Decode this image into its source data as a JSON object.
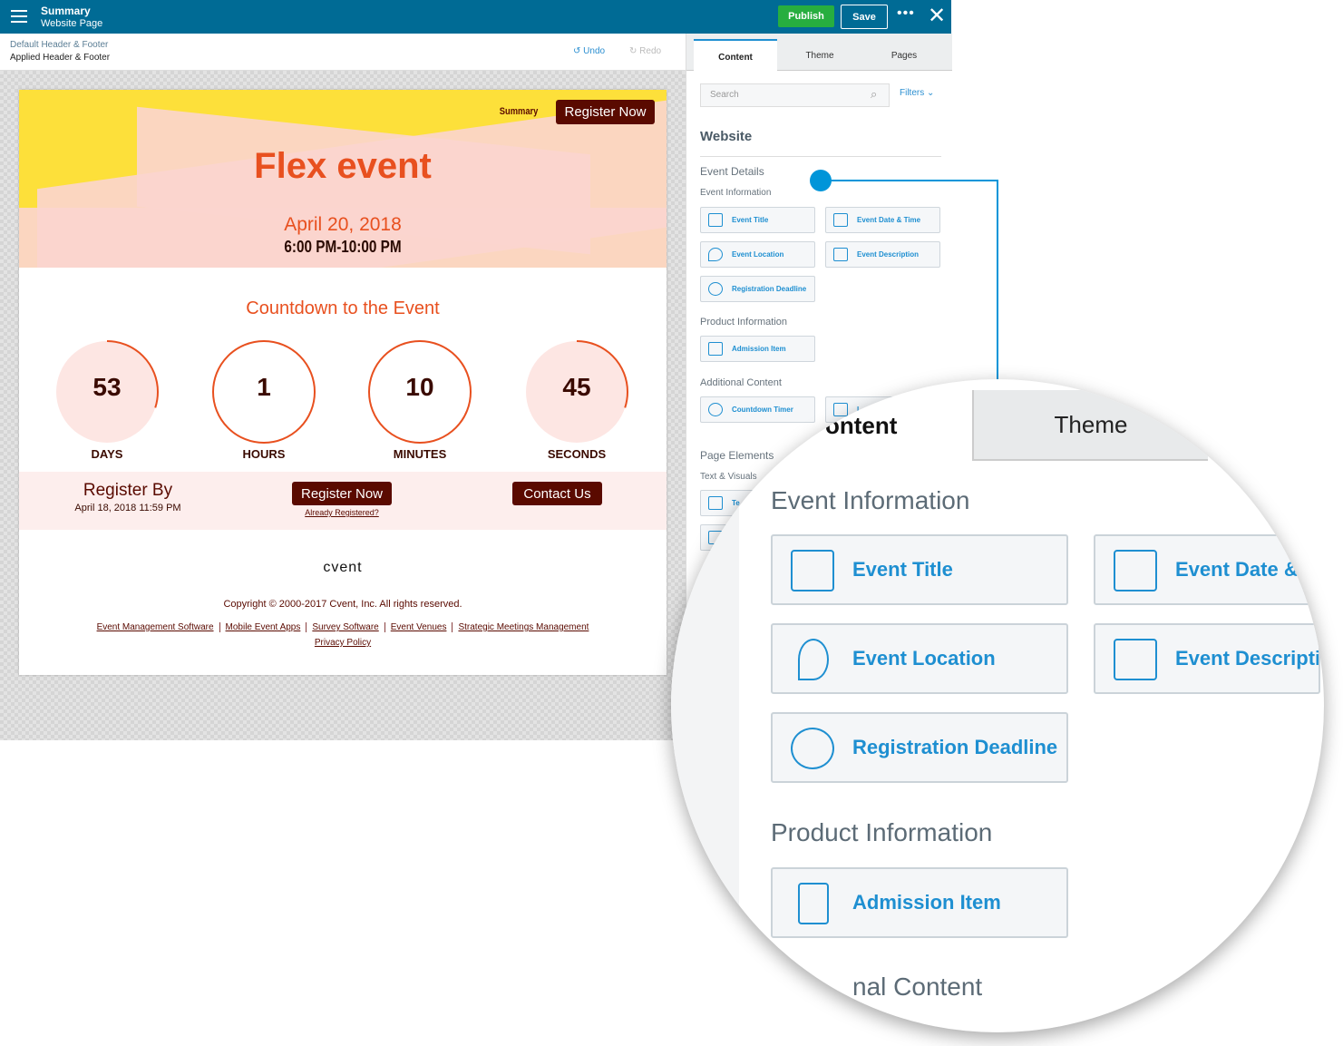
{
  "topbar": {
    "title": "Summary",
    "subtitle": "Website Page",
    "publish": "Publish",
    "save": "Save",
    "more": "•••",
    "close": "✕"
  },
  "subbar": {
    "default": "Default Header & Footer",
    "applied": "Applied Header & Footer",
    "undo": "Undo",
    "redo": "Redo"
  },
  "page": {
    "nav_summary": "Summary",
    "register_top": "Register Now",
    "title": "Flex event",
    "date": "April 20, 2018",
    "time": "6:00 PM-10:00 PM",
    "countdown_title": "Countdown to the Event",
    "countdown": [
      {
        "value": "53",
        "label": "DAYS",
        "progress": 0.3
      },
      {
        "value": "1",
        "label": "HOURS",
        "progress": 1
      },
      {
        "value": "10",
        "label": "MINUTES",
        "progress": 1
      },
      {
        "value": "45",
        "label": "SECONDS",
        "progress": 0.3
      }
    ],
    "register_by": "Register By",
    "register_by_date": "April 18, 2018   11:59 PM",
    "register_now": "Register Now",
    "already": "Already Registered?",
    "contact": "Contact Us",
    "logo": "cvent",
    "copyright": "Copyright © 2000-2017 Cvent, Inc. All rights reserved.",
    "links": [
      "Event Management Software",
      "Mobile Event Apps",
      "Survey Software",
      "Event Venues",
      "Strategic Meetings Management"
    ],
    "privacy": "Privacy Policy",
    "colors": {
      "accent": "#e8501f",
      "dark": "#5a0a00",
      "yellow": "#fde03a"
    }
  },
  "panel": {
    "tabs": [
      "Content",
      "Theme",
      "Pages"
    ],
    "search_placeholder": "Search",
    "filters": "Filters ⌄",
    "website": "Website",
    "event_details": "Event Details",
    "event_information": "Event Information",
    "event_cards": [
      "Event Title",
      "Event Date & Time",
      "Event Location",
      "Event Description",
      "Registration Deadline"
    ],
    "product_information": "Product Information",
    "product_cards": [
      "Admission Item"
    ],
    "additional_content": "Additional Content",
    "additional_cards": [
      "Countdown Timer",
      "L"
    ],
    "page_elements": "Page Elements",
    "text_visuals": "Text & Visuals",
    "text_cards": [
      "Te"
    ]
  },
  "magnifier": {
    "content_tab": "ontent",
    "theme_tab": "Theme",
    "event_information": "Event Information",
    "cards": [
      "Event Title",
      "Event Date &",
      "Event Location",
      "Event Descripti",
      "Registration Deadline"
    ],
    "product_information": "Product Information",
    "product_card": "Admission Item",
    "additional": "nal Content"
  }
}
